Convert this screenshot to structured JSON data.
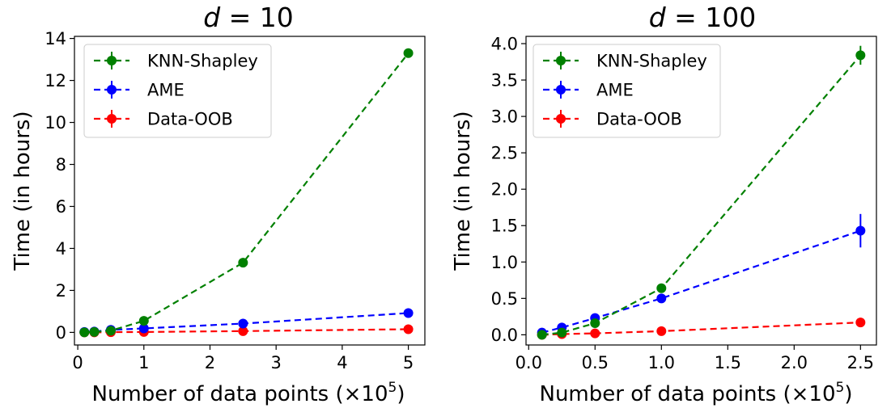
{
  "chart_data": [
    {
      "type": "line",
      "title": "d = 10",
      "title_var": "d",
      "title_rest": " = 10",
      "xlabel": "Number of data points (×10",
      "xlabel_exp": "5",
      "xlabel_close": ")",
      "ylabel": "Time (in hours)",
      "xlim": [
        -0.05,
        5.25
      ],
      "ylim": [
        -0.6,
        14.1
      ],
      "xticks": [
        0,
        1,
        2,
        3,
        4,
        5
      ],
      "xtick_labels": [
        "0",
        "1",
        "2",
        "3",
        "4",
        "5"
      ],
      "yticks": [
        0,
        2,
        4,
        6,
        8,
        10,
        12,
        14
      ],
      "ytick_labels": [
        "0",
        "2",
        "4",
        "6",
        "8",
        "10",
        "12",
        "14"
      ],
      "grid": false,
      "legend_position": "top-left",
      "x": [
        0.1,
        0.25,
        0.5,
        1.0,
        2.5,
        5.0
      ],
      "series": [
        {
          "name": "KNN-Shapley",
          "color": "#008000",
          "values": [
            0.0,
            0.02,
            0.08,
            0.55,
            3.32,
            13.3
          ],
          "err": [
            0,
            0,
            0,
            0.05,
            0.08,
            0.1
          ]
        },
        {
          "name": "AME",
          "color": "#0000ff",
          "values": [
            0.02,
            0.04,
            0.12,
            0.19,
            0.42,
            0.92
          ],
          "err": [
            0,
            0,
            0.05,
            0.05,
            0.05,
            0.22
          ]
        },
        {
          "name": "Data-OOB",
          "color": "#ff0000",
          "values": [
            0.0,
            0.0,
            0.01,
            0.02,
            0.06,
            0.15
          ],
          "err": [
            0,
            0,
            0,
            0,
            0,
            0
          ]
        }
      ]
    },
    {
      "type": "line",
      "title": "d = 100",
      "title_var": "d",
      "title_rest": " = 100",
      "xlabel": "Number of data points (×10",
      "xlabel_exp": "5",
      "xlabel_close": ")",
      "ylabel": "Time (in hours)",
      "xlim": [
        -0.02,
        2.62
      ],
      "ylim": [
        -0.14,
        4.1
      ],
      "xticks": [
        0.0,
        0.5,
        1.0,
        1.5,
        2.0,
        2.5
      ],
      "xtick_labels": [
        "0.0",
        "0.5",
        "1.0",
        "1.5",
        "2.0",
        "2.5"
      ],
      "yticks": [
        0.0,
        0.5,
        1.0,
        1.5,
        2.0,
        2.5,
        3.0,
        3.5,
        4.0
      ],
      "ytick_labels": [
        "0.0",
        "0.5",
        "1.0",
        "1.5",
        "2.0",
        "2.5",
        "3.0",
        "3.5",
        "4.0"
      ],
      "grid": false,
      "legend_position": "top-left",
      "x": [
        0.1,
        0.25,
        0.5,
        1.0,
        2.5
      ],
      "series": [
        {
          "name": "KNN-Shapley",
          "color": "#008000",
          "values": [
            0.0,
            0.03,
            0.16,
            0.64,
            3.84
          ],
          "err": [
            0,
            0,
            0,
            0.03,
            0.13
          ]
        },
        {
          "name": "AME",
          "color": "#0000ff",
          "values": [
            0.03,
            0.1,
            0.23,
            0.5,
            1.43
          ],
          "err": [
            0,
            0,
            0.04,
            0.03,
            0.23
          ]
        },
        {
          "name": "Data-OOB",
          "color": "#ff0000",
          "values": [
            0.0,
            0.01,
            0.02,
            0.05,
            0.17
          ],
          "err": [
            0,
            0,
            0,
            0,
            0
          ]
        }
      ]
    }
  ]
}
